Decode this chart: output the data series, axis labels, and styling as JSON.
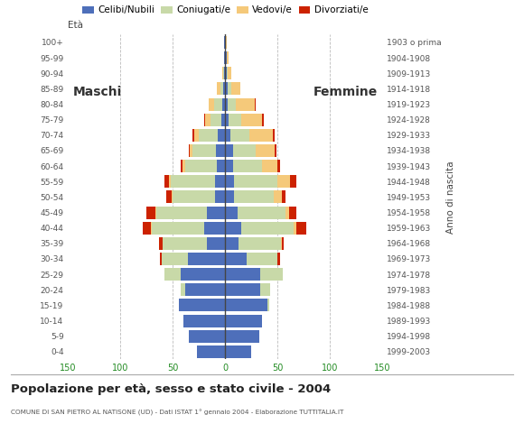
{
  "age_groups": [
    "0-4",
    "5-9",
    "10-14",
    "15-19",
    "20-24",
    "25-29",
    "30-34",
    "35-39",
    "40-44",
    "45-49",
    "50-54",
    "55-59",
    "60-64",
    "65-69",
    "70-74",
    "75-79",
    "80-84",
    "85-89",
    "90-94",
    "95-99",
    "100+"
  ],
  "birth_years": [
    "1999-2003",
    "1994-1998",
    "1989-1993",
    "1984-1988",
    "1979-1983",
    "1974-1978",
    "1969-1973",
    "1964-1968",
    "1959-1963",
    "1954-1958",
    "1949-1953",
    "1944-1948",
    "1939-1943",
    "1934-1938",
    "1929-1933",
    "1924-1928",
    "1919-1923",
    "1914-1918",
    "1909-1913",
    "1904-1908",
    "1903 o prima"
  ],
  "males": {
    "celibi": [
      27,
      35,
      40,
      44,
      38,
      43,
      36,
      18,
      20,
      18,
      10,
      10,
      8,
      9,
      7,
      4,
      3,
      2,
      1,
      1,
      1
    ],
    "coniugati": [
      0,
      0,
      0,
      0,
      5,
      15,
      25,
      42,
      50,
      48,
      40,
      42,
      30,
      22,
      18,
      10,
      8,
      3,
      1,
      0,
      0
    ],
    "vedovi": [
      0,
      0,
      0,
      0,
      0,
      0,
      0,
      0,
      1,
      1,
      1,
      2,
      3,
      3,
      5,
      5,
      5,
      3,
      1,
      0,
      0
    ],
    "divorziati": [
      0,
      0,
      0,
      0,
      0,
      0,
      1,
      3,
      8,
      8,
      5,
      4,
      2,
      1,
      1,
      1,
      0,
      0,
      0,
      0,
      0
    ]
  },
  "females": {
    "celibi": [
      25,
      32,
      35,
      40,
      33,
      33,
      20,
      13,
      15,
      12,
      8,
      8,
      7,
      7,
      5,
      3,
      2,
      2,
      1,
      1,
      0
    ],
    "coniugati": [
      0,
      0,
      0,
      2,
      10,
      22,
      30,
      40,
      50,
      45,
      38,
      42,
      28,
      22,
      18,
      12,
      8,
      4,
      1,
      0,
      0
    ],
    "vedovi": [
      0,
      0,
      0,
      0,
      0,
      0,
      0,
      1,
      3,
      4,
      8,
      12,
      15,
      18,
      22,
      20,
      18,
      8,
      4,
      2,
      1
    ],
    "divorziati": [
      0,
      0,
      0,
      0,
      0,
      0,
      2,
      2,
      9,
      7,
      3,
      6,
      2,
      2,
      2,
      2,
      1,
      0,
      0,
      0,
      0
    ]
  },
  "colors": {
    "celibi": "#4e6fba",
    "coniugati": "#c8d9a8",
    "vedovi": "#f5c97a",
    "divorziati": "#cc2200"
  },
  "xlim": 150,
  "title": "Popolazione per età, sesso e stato civile - 2004",
  "subtitle": "COMUNE DI SAN PIETRO AL NATISONE (UD) - Dati ISTAT 1° gennaio 2004 - Elaborazione TUTTITALIA.IT",
  "legend_labels": [
    "Celibi/Nubili",
    "Coniugati/e",
    "Vedovi/e",
    "Divorziati/e"
  ],
  "label_left": "Maschi",
  "label_right": "Femmine",
  "ylabel_left": "Età",
  "ylabel_right": "Anno di nascita",
  "bg_color": "#ffffff",
  "grid_color": "#bbbbbb",
  "axis_color": "#228B22",
  "text_color": "#555555"
}
